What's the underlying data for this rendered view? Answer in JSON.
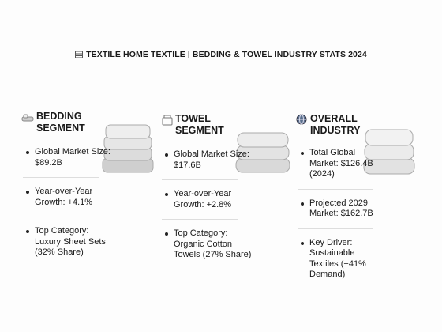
{
  "header": {
    "title": "TEXTILE HOME TEXTILE | BEDDING & TOWEL INDUSTRY STATS 2024"
  },
  "columns": [
    {
      "title": "BEDDING SEGMENT",
      "bullets": [
        "Global Market Size: $89.2B",
        "Year-over-Year Growth: +4.1%",
        "Top Category: Luxury Sheet Sets (32% Share)"
      ]
    },
    {
      "title": "TOWEL SEGMENT",
      "bullets": [
        "Global Market Size: $17.6B",
        "Year-over-Year Growth: +2.8%",
        "Top Category: Organic Cotton Towels (27% Share)"
      ]
    },
    {
      "title": "OVERALL INDUSTRY",
      "bullets": [
        "Total Global Market: $126.4B (2024)",
        "Projected 2029 Market: $162.7B",
        "Key Driver: Sustainable Textiles (+41% Demand)"
      ]
    }
  ]
}
